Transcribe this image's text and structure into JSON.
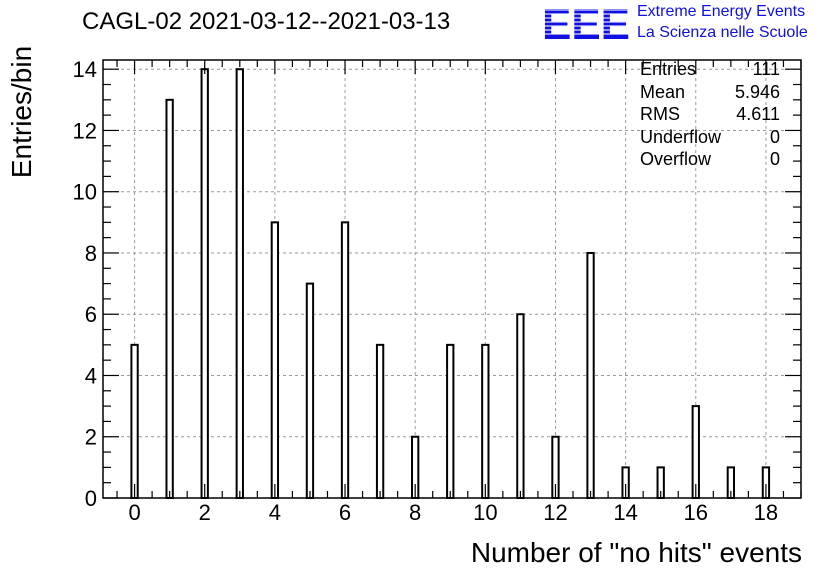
{
  "title": "CAGL-02 2021-03-12--2021-03-13",
  "logo": {
    "mark": "EEE",
    "line1": "Extreme Energy Events",
    "line2": "La Scienza nelle Scuole",
    "color": "#1010e0"
  },
  "stats": [
    {
      "label": "Entries",
      "value": "111"
    },
    {
      "label": "Mean",
      "value": "5.946"
    },
    {
      "label": "RMS",
      "value": "4.611"
    },
    {
      "label": "Underflow",
      "value": "0"
    },
    {
      "label": "Overflow",
      "value": "0"
    }
  ],
  "chart_data": {
    "type": "bar",
    "title": "CAGL-02 2021-03-12--2021-03-13",
    "xlabel": "Number of \"no hits\" events",
    "ylabel": "Entries/bin",
    "categories": [
      0,
      1,
      2,
      3,
      4,
      5,
      6,
      7,
      8,
      9,
      10,
      11,
      12,
      13,
      14,
      15,
      16,
      17,
      18
    ],
    "values": [
      5,
      13,
      14,
      14,
      9,
      7,
      9,
      5,
      2,
      5,
      5,
      6,
      2,
      8,
      1,
      1,
      3,
      1,
      1
    ],
    "xlim": [
      -0.9,
      19.0
    ],
    "ylim": [
      0,
      14.3
    ],
    "xticks": [
      0,
      2,
      4,
      6,
      8,
      10,
      12,
      14,
      16,
      18
    ],
    "yticks": [
      0,
      2,
      4,
      6,
      8,
      10,
      12,
      14
    ],
    "grid": true,
    "bar_color": "#ffffff",
    "edge_color": "#000000",
    "legend": "stats box top-right"
  }
}
